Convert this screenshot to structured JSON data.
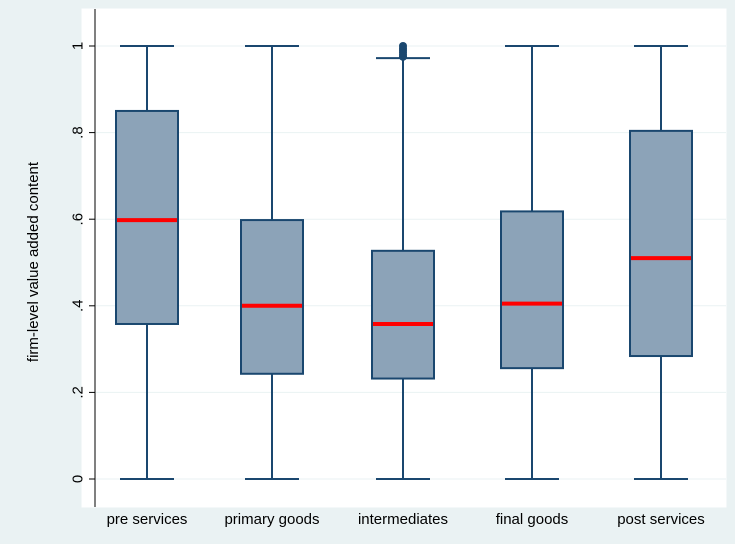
{
  "chart_data": {
    "type": "box",
    "title": "",
    "xlabel": "",
    "ylabel": "firm-level value added content",
    "ylim": [
      0,
      1
    ],
    "yticks": [
      {
        "value": 0,
        "label": "0"
      },
      {
        "value": 0.2,
        "label": ".2"
      },
      {
        "value": 0.4,
        "label": ".4"
      },
      {
        "value": 0.6,
        "label": ".6"
      },
      {
        "value": 0.8,
        "label": ".8"
      },
      {
        "value": 1,
        "label": "1"
      }
    ],
    "grid": true,
    "categories": [
      "pre services",
      "primary goods",
      "intermediates",
      "final goods",
      "post services"
    ],
    "boxes": [
      {
        "category": "pre services",
        "min": 0,
        "q1": 0.358,
        "median": 0.598,
        "q3": 0.85,
        "max": 1,
        "outliers": []
      },
      {
        "category": "primary goods",
        "min": 0,
        "q1": 0.243,
        "median": 0.4,
        "q3": 0.598,
        "max": 1,
        "outliers": []
      },
      {
        "category": "intermediates",
        "min": 0,
        "q1": 0.232,
        "median": 0.358,
        "q3": 0.527,
        "max": 0.972,
        "outliers": [
          0.975,
          0.98,
          0.985,
          0.99,
          0.995,
          1.0
        ]
      },
      {
        "category": "final goods",
        "min": 0,
        "q1": 0.256,
        "median": 0.405,
        "q3": 0.618,
        "max": 1,
        "outliers": []
      },
      {
        "category": "post services",
        "min": 0,
        "q1": 0.284,
        "median": 0.51,
        "q3": 0.804,
        "max": 1,
        "outliers": []
      }
    ],
    "colors": {
      "background": "#eaf2f3",
      "plot_background": "#ffffff",
      "box_fill": "#8ca3b8",
      "box_stroke": "#1a476f",
      "median": "#ff0000",
      "grid": "#eaf2f3",
      "axis": "#000000"
    }
  }
}
